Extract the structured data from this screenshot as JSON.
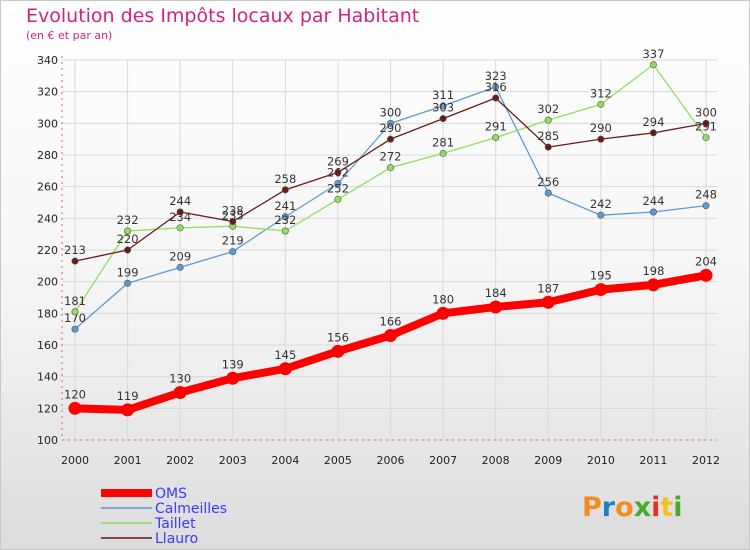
{
  "chart_data": {
    "type": "line",
    "title": "Evolution des Impôts locaux par Habitant",
    "subtitle": "(en € et par an)",
    "x": [
      "2000",
      "2001",
      "2002",
      "2003",
      "2004",
      "2005",
      "2006",
      "2007",
      "2008",
      "2009",
      "2010",
      "2011",
      "2012"
    ],
    "ylim": [
      100,
      340
    ],
    "yticks": [
      100,
      120,
      140,
      160,
      180,
      200,
      220,
      240,
      260,
      280,
      300,
      320,
      340
    ],
    "grid": true,
    "legend_position": "bottom-left",
    "series": [
      {
        "name": "OMS",
        "color": "#ff0000",
        "values": [
          120,
          119,
          130,
          139,
          145,
          156,
          166,
          180,
          184,
          187,
          195,
          198,
          204
        ]
      },
      {
        "name": "Calmeilles",
        "color": "#5b9bd5",
        "values": [
          170,
          199,
          209,
          219,
          241,
          262,
          300,
          311,
          323,
          256,
          242,
          244,
          248
        ]
      },
      {
        "name": "Taillet",
        "color": "#8ee05a",
        "values": [
          181,
          232,
          234,
          235,
          232,
          252,
          272,
          281,
          291,
          302,
          312,
          337,
          291
        ]
      },
      {
        "name": "Llauro",
        "color": "#6b1a1a",
        "values": [
          213,
          220,
          244,
          238,
          258,
          269,
          290,
          303,
          316,
          285,
          290,
          294,
          300
        ]
      }
    ]
  },
  "logo": {
    "text": "Proxiti"
  }
}
